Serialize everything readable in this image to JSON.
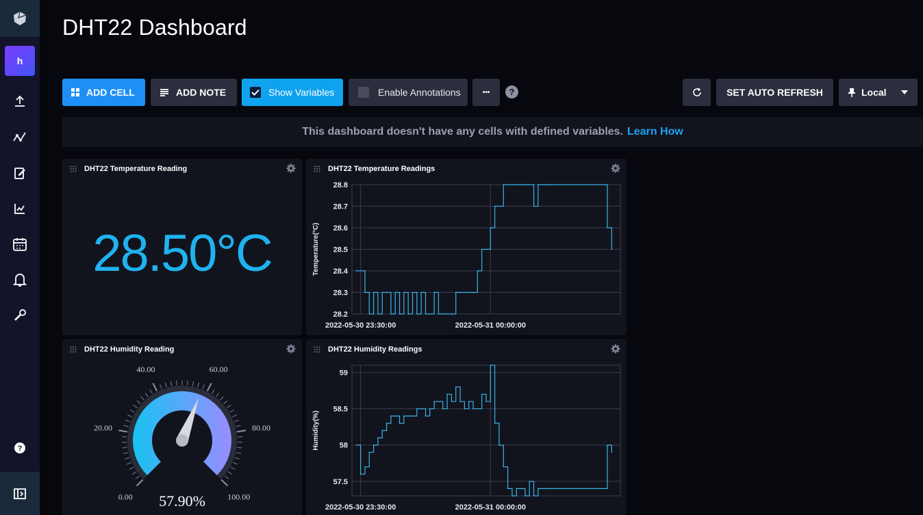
{
  "page": {
    "title": "DHT22 Dashboard"
  },
  "toolbar": {
    "add_cell": "ADD CELL",
    "add_note": "ADD NOTE",
    "show_variables": "Show Variables",
    "enable_annotations": "Enable Annotations",
    "more": "•••",
    "help": "?",
    "set_auto_refresh": "SET AUTO REFRESH",
    "timezone": "Local"
  },
  "banner": {
    "text": "This dashboard doesn't have any cells with defined variables.",
    "link": "Learn How"
  },
  "sidebar": {
    "org_initial": "h",
    "icons": [
      "upload-icon",
      "data-explorer-icon",
      "notebook-icon",
      "dashboards-icon",
      "tasks-icon",
      "alerts-icon",
      "settings-icon",
      "help-icon",
      "collapse-icon"
    ]
  },
  "cells": {
    "temp_single": {
      "title": "DHT22 Temperature Reading",
      "value": "28.50°C"
    },
    "temp_graph": {
      "title": "DHT22 Temperature Readings"
    },
    "hum_gauge": {
      "title": "DHT22 Humidity Reading",
      "value": "57.90%",
      "ticks": [
        "0.00",
        "20.00",
        "40.00",
        "60.00",
        "80.00",
        "100.00"
      ]
    },
    "hum_graph": {
      "title": "DHT22 Humidity Readings"
    }
  },
  "colors": {
    "accent": "#1fb2ef",
    "line": "#3ab4ea",
    "gauge_start": "#18c2f2",
    "gauge_end": "#9a8cff"
  },
  "chart_data": [
    {
      "type": "line",
      "title": "DHT22 Temperature Readings",
      "ylabel": "Temperature(°C)",
      "xlabel": "",
      "x_ticks": [
        "2022-05-30 23:30:00",
        "2022-05-31 00:00:00"
      ],
      "y_ticks": [
        "28.2",
        "28.3",
        "28.4",
        "28.5",
        "28.6",
        "28.7",
        "28.8"
      ],
      "ylim": [
        28.2,
        28.8
      ],
      "x": [
        "23:29",
        "23:31",
        "23:31",
        "23:32",
        "23:33",
        "23:34",
        "23:35",
        "23:36",
        "23:37",
        "23:38",
        "23:39",
        "23:40",
        "23:41",
        "23:42",
        "23:43",
        "23:44",
        "23:45",
        "23:46",
        "23:47",
        "23:48",
        "23:49",
        "23:50",
        "23:51",
        "23:52",
        "23:53",
        "23:54",
        "23:55",
        "23:56",
        "23:57",
        "23:58",
        "23:59",
        "00:00",
        "00:01",
        "00:02",
        "00:03",
        "00:04",
        "00:05",
        "00:06",
        "00:07",
        "00:08",
        "00:09",
        "00:10",
        "00:11",
        "00:12",
        "00:13",
        "00:14",
        "00:27",
        "00:28"
      ],
      "values": [
        28.4,
        28.4,
        28.3,
        28.2,
        28.3,
        28.2,
        28.3,
        28.3,
        28.2,
        28.3,
        28.2,
        28.3,
        28.2,
        28.3,
        28.2,
        28.3,
        28.2,
        28.2,
        28.3,
        28.2,
        28.2,
        28.2,
        28.2,
        28.3,
        28.3,
        28.3,
        28.3,
        28.3,
        28.4,
        28.5,
        28.5,
        28.6,
        28.7,
        28.7,
        28.8,
        28.8,
        28.8,
        28.8,
        28.8,
        28.8,
        28.8,
        28.7,
        28.8,
        28.8,
        28.8,
        28.8,
        28.6,
        28.5
      ]
    },
    {
      "type": "line",
      "title": "DHT22 Humidity Readings",
      "ylabel": "Humidity(%)",
      "xlabel": "",
      "x_ticks": [
        "2022-05-30 23:30:00",
        "2022-05-31 00:00:00"
      ],
      "y_ticks": [
        "57.5",
        "58",
        "58.5",
        "59"
      ],
      "ylim": [
        57.3,
        59.1
      ],
      "x": [
        "23:29",
        "23:30",
        "23:31",
        "23:32",
        "23:33",
        "23:34",
        "23:35",
        "23:36",
        "23:37",
        "23:38",
        "23:39",
        "23:40",
        "23:41",
        "23:42",
        "23:43",
        "23:44",
        "23:45",
        "23:46",
        "23:47",
        "23:48",
        "23:49",
        "23:50",
        "23:51",
        "23:52",
        "23:53",
        "23:54",
        "23:55",
        "23:56",
        "23:57",
        "23:58",
        "23:59",
        "00:00",
        "00:01",
        "00:02",
        "00:03",
        "00:04",
        "00:05",
        "00:06",
        "00:07",
        "00:08",
        "00:09",
        "00:10",
        "00:11",
        "00:12",
        "00:13",
        "00:27",
        "00:28"
      ],
      "values": [
        58.0,
        57.6,
        57.7,
        57.9,
        58.0,
        58.1,
        58.2,
        58.3,
        58.4,
        58.4,
        58.3,
        58.4,
        58.4,
        58.4,
        58.5,
        58.5,
        58.4,
        58.5,
        58.6,
        58.6,
        58.5,
        58.7,
        58.6,
        58.8,
        58.6,
        58.5,
        58.6,
        58.5,
        58.5,
        58.7,
        58.6,
        59.1,
        58.3,
        58.0,
        57.7,
        57.4,
        57.3,
        57.4,
        57.4,
        57.3,
        57.5,
        57.3,
        57.4,
        57.4,
        57.4,
        58.0,
        57.9
      ]
    }
  ]
}
